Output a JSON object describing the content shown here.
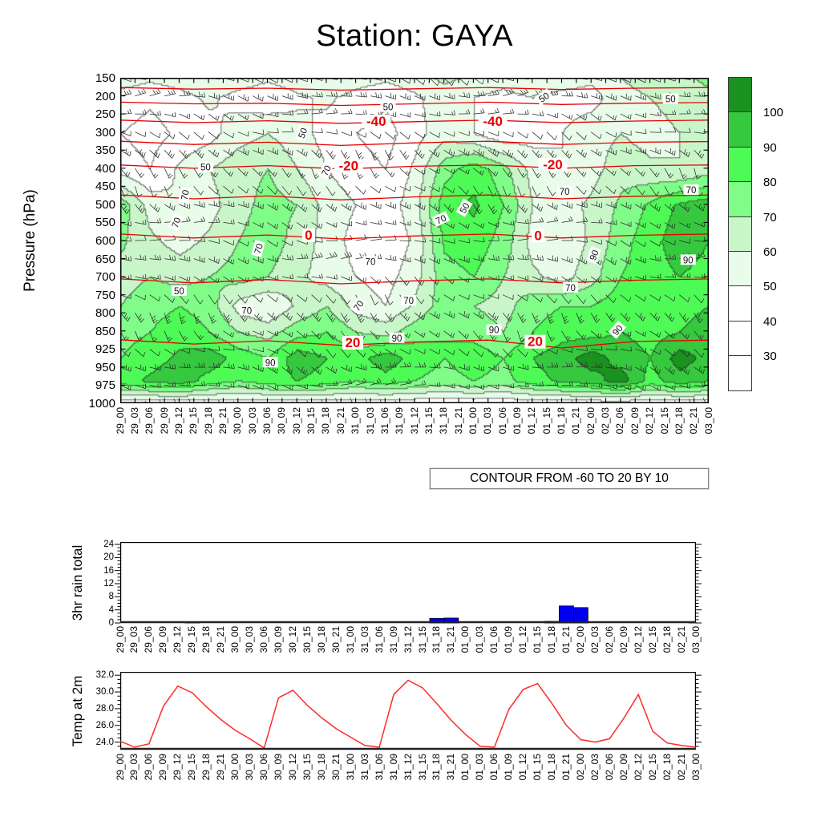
{
  "title": "Station: GAYA",
  "contour_note": "CONTOUR FROM -60 TO 20 BY 10",
  "time_labels": [
    "29_00",
    "29_03",
    "29_06",
    "29_09",
    "29_12",
    "29_15",
    "29_18",
    "29_21",
    "30_00",
    "30_03",
    "30_06",
    "30_09",
    "30_12",
    "30_15",
    "30_18",
    "30_21",
    "31_00",
    "31_03",
    "31_06",
    "31_09",
    "31_12",
    "31_15",
    "31_18",
    "31_21",
    "01_00",
    "01_03",
    "01_06",
    "01_09",
    "01_12",
    "01_15",
    "01_18",
    "01_21",
    "02_00",
    "02_03",
    "02_06",
    "02_09",
    "02_12",
    "02_15",
    "02_18",
    "02_21",
    "03_00"
  ],
  "chart_data": [
    {
      "type": "heatmap",
      "title": "Station: GAYA",
      "ylabel": "Pressure (hPa)",
      "xlabel": "",
      "pressure_levels": [
        "150",
        "200",
        "250",
        "300",
        "350",
        "400",
        "450",
        "500",
        "550",
        "600",
        "650",
        "700",
        "750",
        "800",
        "850",
        "925",
        "950",
        "975",
        "1000"
      ],
      "wind_overlay": "wind barbs at every 3-hour time and every pressure level",
      "colorbar": {
        "tick_labels": [
          "100",
          "90",
          "80",
          "70",
          "60",
          "50",
          "40",
          "30"
        ],
        "cell_colors_top_to_bottom": [
          "#1b921f",
          "#36c83e",
          "#4efa55",
          "#80fc88",
          "#c9f6c9",
          "#e9fbe9",
          "#ffffff",
          "#ffffff",
          "#ffffff"
        ]
      },
      "rh_levels": [
        30,
        40,
        50,
        60,
        70,
        80,
        90,
        100
      ],
      "rh_colors": [
        "#ffffff",
        "#ffffff",
        "#ffffff",
        "#e9fbe9",
        "#c9f6c9",
        "#80fc88",
        "#4efa55",
        "#36c83e",
        "#1b921f"
      ],
      "rh_grid": {
        "col_times": [
          "29_00",
          "29_06",
          "29_12",
          "29_18",
          "30_00",
          "30_06",
          "30_12",
          "30_18",
          "31_00",
          "31_06",
          "31_12",
          "31_18",
          "01_00",
          "01_06",
          "01_12",
          "01_18",
          "02_00",
          "02_06",
          "02_12",
          "02_18",
          "03_00"
        ],
        "row_yfrac": [
          0,
          0.06,
          0.17,
          0.28,
          0.39,
          0.5,
          0.61,
          0.7,
          0.78,
          0.86,
          0.93,
          1
        ],
        "values": [
          [
            55,
            52,
            55,
            60,
            56,
            52,
            56,
            60,
            55,
            52,
            56,
            62,
            58,
            55,
            60,
            56,
            52,
            60,
            65,
            68,
            72
          ],
          [
            46,
            42,
            46,
            52,
            46,
            42,
            48,
            52,
            46,
            42,
            48,
            56,
            50,
            46,
            50,
            46,
            46,
            56,
            60,
            64,
            68
          ],
          [
            40,
            36,
            42,
            46,
            56,
            60,
            54,
            46,
            40,
            36,
            46,
            56,
            50,
            42,
            46,
            50,
            56,
            60,
            56,
            60,
            66
          ],
          [
            46,
            40,
            52,
            60,
            66,
            70,
            60,
            50,
            44,
            40,
            52,
            76,
            86,
            74,
            56,
            50,
            56,
            66,
            62,
            60,
            66
          ],
          [
            76,
            56,
            50,
            56,
            66,
            74,
            70,
            56,
            50,
            44,
            56,
            86,
            92,
            80,
            60,
            56,
            62,
            72,
            82,
            92,
            96
          ],
          [
            72,
            62,
            56,
            62,
            70,
            76,
            66,
            56,
            46,
            42,
            52,
            82,
            86,
            76,
            56,
            52,
            62,
            76,
            86,
            96,
            90
          ],
          [
            66,
            70,
            66,
            70,
            74,
            70,
            62,
            56,
            50,
            46,
            56,
            76,
            80,
            70,
            62,
            56,
            66,
            80,
            86,
            90,
            86
          ],
          [
            70,
            76,
            80,
            76,
            56,
            50,
            62,
            70,
            56,
            50,
            62,
            76,
            70,
            66,
            76,
            80,
            80,
            86,
            80,
            86,
            90
          ],
          [
            76,
            80,
            86,
            80,
            70,
            66,
            76,
            80,
            70,
            66,
            76,
            80,
            76,
            70,
            80,
            86,
            86,
            90,
            86,
            90,
            96
          ],
          [
            80,
            86,
            92,
            96,
            86,
            80,
            96,
            90,
            86,
            96,
            86,
            80,
            86,
            80,
            90,
            96,
            105,
            96,
            90,
            105,
            96
          ],
          [
            86,
            92,
            96,
            86,
            80,
            86,
            90,
            86,
            80,
            86,
            80,
            76,
            80,
            76,
            86,
            92,
            96,
            105,
            86,
            96,
            90
          ],
          [
            42,
            42,
            42,
            42,
            42,
            42,
            42,
            42,
            42,
            42,
            42,
            42,
            42,
            42,
            42,
            42,
            42,
            42,
            42,
            42,
            42
          ]
        ]
      },
      "temp_contours": [
        {
          "label": "-60",
          "y_stops": [
            0.03,
            0.035,
            0.032,
            0.038,
            0.034,
            0.03,
            0.036,
            0.032,
            0.03
          ]
        },
        {
          "label": "-50",
          "y_stops": [
            0.075,
            0.08,
            0.078,
            0.085,
            0.08,
            0.075,
            0.082,
            0.078,
            0.076
          ]
        },
        {
          "label": "-40",
          "y_stops": [
            0.13,
            0.138,
            0.132,
            0.14,
            0.135,
            0.13,
            0.138,
            0.133,
            0.13
          ]
        },
        {
          "label": "-30",
          "y_stops": [
            0.195,
            0.205,
            0.198,
            0.208,
            0.2,
            0.195,
            0.205,
            0.198,
            0.196
          ]
        },
        {
          "label": "-20",
          "y_stops": [
            0.268,
            0.278,
            0.27,
            0.28,
            0.272,
            0.268,
            0.278,
            0.27,
            0.268
          ]
        },
        {
          "label": "-10",
          "y_stops": [
            0.36,
            0.372,
            0.363,
            0.375,
            0.366,
            0.36,
            0.372,
            0.364,
            0.36
          ]
        },
        {
          "label": "0",
          "y_stops": [
            0.48,
            0.492,
            0.483,
            0.495,
            0.486,
            0.48,
            0.492,
            0.484,
            0.48
          ]
        },
        {
          "label": "10",
          "y_stops": [
            0.618,
            0.63,
            0.62,
            0.633,
            0.624,
            0.618,
            0.63,
            0.622,
            0.618
          ]
        },
        {
          "label": "20",
          "y_stops": [
            0.805,
            0.818,
            0.808,
            0.822,
            0.812,
            0.806,
            0.83,
            0.81,
            0.806
          ]
        }
      ],
      "temp_contour_label_color": "#e60000",
      "temp_contour_labels": [
        {
          "text": "-40",
          "x": 0.435,
          "y": 0.135
        },
        {
          "text": "-40",
          "x": 0.633,
          "y": 0.135
        },
        {
          "text": "-20",
          "x": 0.388,
          "y": 0.272
        },
        {
          "text": "-20",
          "x": 0.735,
          "y": 0.268
        },
        {
          "text": "0",
          "x": 0.32,
          "y": 0.485
        },
        {
          "text": "0",
          "x": 0.71,
          "y": 0.486
        },
        {
          "text": "20",
          "x": 0.395,
          "y": 0.815
        },
        {
          "text": "20",
          "x": 0.705,
          "y": 0.812
        }
      ],
      "rh_contour_labels": [
        {
          "text": "50",
          "x": 0.31,
          "y": 0.17,
          "rot": 70
        },
        {
          "text": "50",
          "x": 0.455,
          "y": 0.09,
          "rot": 0
        },
        {
          "text": "50",
          "x": 0.72,
          "y": 0.06,
          "rot": 35
        },
        {
          "text": "50",
          "x": 0.935,
          "y": 0.065,
          "rot": 0
        },
        {
          "text": "50",
          "x": 0.145,
          "y": 0.275,
          "rot": 0
        },
        {
          "text": "50",
          "x": 0.585,
          "y": 0.4,
          "rot": 60
        },
        {
          "text": "50",
          "x": 0.1,
          "y": 0.655,
          "rot": 0
        },
        {
          "text": "70",
          "x": 0.35,
          "y": 0.285,
          "rot": 65
        },
        {
          "text": "70",
          "x": 0.97,
          "y": 0.345,
          "rot": 0
        },
        {
          "text": "70",
          "x": 0.545,
          "y": 0.435,
          "rot": 25
        },
        {
          "text": "70",
          "x": 0.755,
          "y": 0.35,
          "rot": 0
        },
        {
          "text": "70",
          "x": 0.095,
          "y": 0.445,
          "rot": 70
        },
        {
          "text": "70",
          "x": 0.235,
          "y": 0.525,
          "rot": 75
        },
        {
          "text": "70",
          "x": 0.425,
          "y": 0.565,
          "rot": 0
        },
        {
          "text": "70",
          "x": 0.765,
          "y": 0.645,
          "rot": 0
        },
        {
          "text": "70",
          "x": 0.405,
          "y": 0.7,
          "rot": 55
        },
        {
          "text": "70",
          "x": 0.215,
          "y": 0.715,
          "rot": 0
        },
        {
          "text": "70",
          "x": 0.49,
          "y": 0.685,
          "rot": 0
        },
        {
          "text": "70",
          "x": 0.11,
          "y": 0.36,
          "rot": 80
        },
        {
          "text": "90",
          "x": 0.47,
          "y": 0.8,
          "rot": 0
        },
        {
          "text": "90",
          "x": 0.635,
          "y": 0.775,
          "rot": 0
        },
        {
          "text": "90",
          "x": 0.845,
          "y": 0.775,
          "rot": 50
        },
        {
          "text": "90",
          "x": 0.805,
          "y": 0.545,
          "rot": 70
        },
        {
          "text": "90",
          "x": 0.255,
          "y": 0.875,
          "rot": 0
        },
        {
          "text": "90",
          "x": 0.965,
          "y": 0.56,
          "rot": 0
        }
      ]
    },
    {
      "type": "bar",
      "ylabel": "3hr rain total",
      "xlabel": "",
      "bar_color": "#0000ee",
      "yticks": [
        0,
        4,
        8,
        12,
        16,
        20,
        24
      ],
      "yminor": 1,
      "ylim": [
        0,
        24.7
      ],
      "categories": [
        "29_00",
        "29_03",
        "29_06",
        "29_09",
        "29_12",
        "29_15",
        "29_18",
        "29_21",
        "30_00",
        "30_03",
        "30_06",
        "30_09",
        "30_12",
        "30_15",
        "30_18",
        "30_21",
        "31_00",
        "31_03",
        "31_06",
        "31_09",
        "31_12",
        "31_15",
        "31_18",
        "31_21",
        "01_00",
        "01_03",
        "01_06",
        "01_09",
        "01_12",
        "01_15",
        "01_18",
        "01_21",
        "02_00",
        "02_03",
        "02_06",
        "02_09",
        "02_12",
        "02_15",
        "02_18",
        "02_21",
        "03_00"
      ],
      "values": [
        0,
        0,
        0,
        0,
        0,
        0.2,
        0,
        0,
        0,
        0,
        0,
        0,
        0,
        0,
        0,
        0,
        0,
        0,
        0,
        0,
        0,
        0,
        1.4,
        1.5,
        0,
        0,
        0,
        0,
        0,
        0,
        0.5,
        5.2,
        4.7,
        0,
        0,
        0,
        0,
        0,
        0,
        0,
        0.3
      ]
    },
    {
      "type": "line",
      "ylabel": "Temp at 2m",
      "xlabel": "",
      "line_color": "#ff2a2a",
      "yticks": [
        24,
        26,
        28,
        30,
        32
      ],
      "yminor": 0.5,
      "ylim": [
        23.1,
        32.4
      ],
      "categories": [
        "29_00",
        "29_03",
        "29_06",
        "29_09",
        "29_12",
        "29_15",
        "29_18",
        "29_21",
        "30_00",
        "30_03",
        "30_06",
        "30_09",
        "30_12",
        "30_15",
        "30_18",
        "30_21",
        "31_00",
        "31_03",
        "31_06",
        "31_09",
        "31_12",
        "31_15",
        "31_18",
        "31_21",
        "01_00",
        "01_03",
        "01_06",
        "01_09",
        "01_12",
        "01_15",
        "01_18",
        "01_21",
        "02_00",
        "02_03",
        "02_06",
        "02_09",
        "02_12",
        "02_15",
        "02_18",
        "02_21",
        "03_00"
      ],
      "values": [
        24.1,
        23.4,
        23.8,
        28.3,
        30.7,
        29.9,
        28.2,
        26.7,
        25.4,
        24.4,
        23.3,
        29.3,
        30.2,
        28.4,
        26.9,
        25.6,
        24.6,
        23.6,
        23.4,
        29.7,
        31.4,
        30.5,
        28.6,
        26.6,
        24.9,
        23.5,
        23.4,
        27.9,
        30.3,
        31.0,
        28.6,
        26.0,
        24.3,
        24.0,
        24.4,
        26.9,
        29.7,
        25.3,
        23.9,
        23.6,
        23.4
      ]
    }
  ]
}
